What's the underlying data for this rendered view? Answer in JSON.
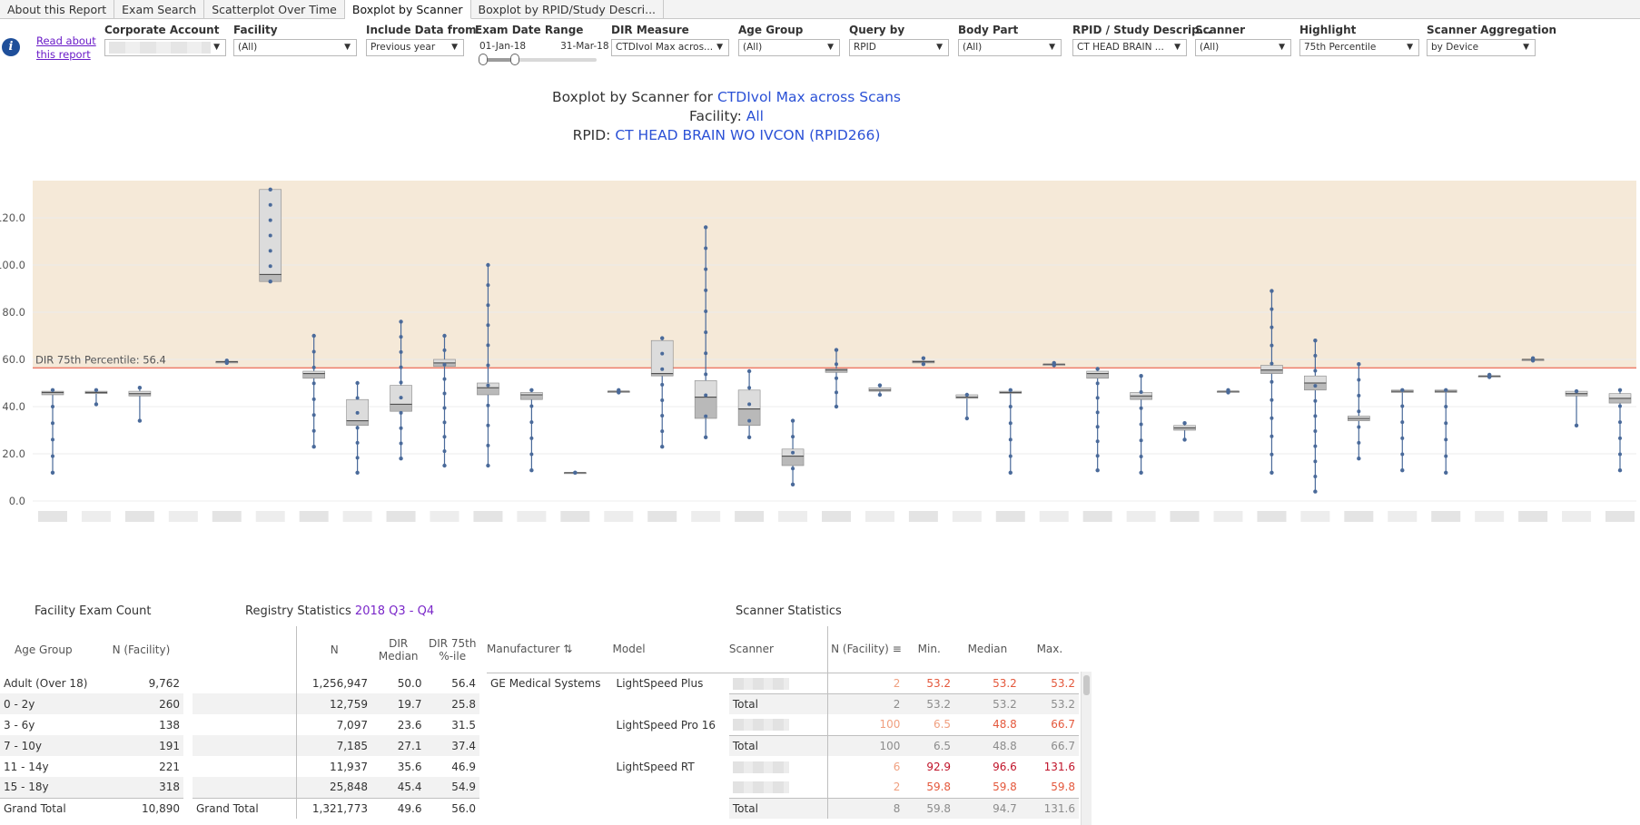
{
  "tabs": [
    "About this Report",
    "Exam Search",
    "Scatterplot Over Time",
    "Boxplot by Scanner",
    "Boxplot by RPID/Study Descri..."
  ],
  "active_tab": 3,
  "info": {
    "read_about": "Read about this report"
  },
  "filters": {
    "corporate_account": {
      "label": "Corporate Account",
      "value": ""
    },
    "facility": {
      "label": "Facility",
      "value": "(All)"
    },
    "include_data": {
      "label": "Include Data from",
      "value": "Previous year"
    },
    "exam_date": {
      "label": "Exam Date Range",
      "start": "01-Jan-18",
      "end": "31-Mar-18"
    },
    "dir_measure": {
      "label": "DIR Measure",
      "value": "CTDIvol Max acros..."
    },
    "age_group": {
      "label": "Age Group",
      "value": "(All)"
    },
    "query_by": {
      "label": "Query by",
      "value": "RPID"
    },
    "body_part": {
      "label": "Body Part",
      "value": "(All)"
    },
    "rpid": {
      "label": "RPID / Study Descrip...",
      "value": "CT HEAD BRAIN ..."
    },
    "scanner": {
      "label": "Scanner",
      "value": "(All)"
    },
    "highlight": {
      "label": "Highlight",
      "value": "75th Percentile"
    },
    "aggregation": {
      "label": "Scanner Aggregation",
      "value": "by Device"
    }
  },
  "title": {
    "prefix": "Boxplot by Scanner for ",
    "measure": "CTDIvol Max across Scans",
    "facility_prefix": "Facility: ",
    "facility": "All",
    "rpid_prefix": "RPID: ",
    "rpid": "CT HEAD BRAIN WO IVCON (RPID266)"
  },
  "colors": {
    "band": "#f5e9d8",
    "refline": "#ee7d6a",
    "dot": "#4a6a9a",
    "box_light": "#dcdcdc",
    "box_dark": "#b9b9b9",
    "link_blue": "#2b51d6",
    "purple": "#7a27c9"
  },
  "chart_data": {
    "type": "boxplot",
    "y_ticks": [
      "120.0",
      "100.0",
      "80.0",
      "60.0",
      "40.0",
      "20.0",
      "0.0"
    ],
    "ylim": [
      0,
      140
    ],
    "ref_line": {
      "label": "DIR 75th Percentile: 56.4",
      "value": 56.4
    },
    "boxes": [
      {
        "min": 12,
        "q1": 45,
        "med": 46,
        "q3": 46.5,
        "max": 47
      },
      {
        "min": 41,
        "q1": 45.5,
        "med": 46,
        "q3": 46.5,
        "max": 47
      },
      {
        "min": 34,
        "q1": 44.5,
        "med": 45.5,
        "q3": 46.5,
        "max": 48
      },
      null,
      {
        "min": 58.5,
        "q1": 58.5,
        "med": 59,
        "q3": 59.2,
        "max": 59.5
      },
      {
        "min": 93,
        "q1": 93,
        "med": 96,
        "q3": 132,
        "max": 132
      },
      {
        "min": 23,
        "q1": 52,
        "med": 54,
        "q3": 55,
        "max": 70
      },
      {
        "min": 12,
        "q1": 32,
        "med": 34,
        "q3": 43,
        "max": 50
      },
      {
        "min": 18,
        "q1": 38,
        "med": 41,
        "q3": 49,
        "max": 76
      },
      {
        "min": 15,
        "q1": 57,
        "med": 58.5,
        "q3": 60,
        "max": 70
      },
      {
        "min": 15,
        "q1": 45,
        "med": 48,
        "q3": 50,
        "max": 100
      },
      {
        "min": 13,
        "q1": 43,
        "med": 45,
        "q3": 46,
        "max": 47
      },
      {
        "min": 12,
        "q1": 12,
        "med": 12,
        "q3": 12,
        "max": 12
      },
      {
        "min": 46,
        "q1": 46,
        "med": 46.5,
        "q3": 46.5,
        "max": 47
      },
      {
        "min": 23,
        "q1": 53,
        "med": 54,
        "q3": 68,
        "max": 69
      },
      {
        "min": 27,
        "q1": 35,
        "med": 44,
        "q3": 51,
        "max": 116
      },
      {
        "min": 27,
        "q1": 32,
        "med": 39,
        "q3": 47,
        "max": 55
      },
      {
        "min": 7,
        "q1": 15,
        "med": 19,
        "q3": 22,
        "max": 34
      },
      {
        "min": 40,
        "q1": 54.5,
        "med": 55.5,
        "q3": 56,
        "max": 64
      },
      {
        "min": 45,
        "q1": 46.5,
        "med": 47,
        "q3": 48,
        "max": 49
      },
      {
        "min": 58,
        "q1": 58.5,
        "med": 59,
        "q3": 59.5,
        "max": 60.5
      },
      {
        "min": 35,
        "q1": 43.5,
        "med": 44,
        "q3": 45,
        "max": 45
      },
      {
        "min": 12,
        "q1": 46,
        "med": 46,
        "q3": 46.5,
        "max": 47
      },
      {
        "min": 57.5,
        "q1": 57.5,
        "med": 58,
        "q3": 58,
        "max": 58.5
      },
      {
        "min": 13,
        "q1": 52,
        "med": 54,
        "q3": 55,
        "max": 56
      },
      {
        "min": 12,
        "q1": 43,
        "med": 44.5,
        "q3": 46,
        "max": 53
      },
      {
        "min": 26,
        "q1": 30,
        "med": 31,
        "q3": 32,
        "max": 33
      },
      {
        "min": 46,
        "q1": 46,
        "med": 46.5,
        "q3": 46.5,
        "max": 47
      },
      {
        "min": 12,
        "q1": 54,
        "med": 55.5,
        "q3": 57.5,
        "max": 89
      },
      {
        "min": 4,
        "q1": 47,
        "med": 50,
        "q3": 53,
        "max": 68
      },
      {
        "min": 18,
        "q1": 34,
        "med": 35,
        "q3": 36,
        "max": 58
      },
      {
        "min": 13,
        "q1": 46,
        "med": 46.5,
        "q3": 47,
        "max": 47
      },
      {
        "min": 12,
        "q1": 46,
        "med": 46.5,
        "q3": 47,
        "max": 47
      },
      {
        "min": 52.5,
        "q1": 52.5,
        "med": 53,
        "q3": 53,
        "max": 53.5
      },
      {
        "min": 59.5,
        "q1": 59.5,
        "med": 60,
        "q3": 60,
        "max": 60.5
      },
      {
        "min": 32,
        "q1": 44.5,
        "med": 45.5,
        "q3": 46.5,
        "max": 46.5
      },
      {
        "min": 13,
        "q1": 41.5,
        "med": 43.5,
        "q3": 45.5,
        "max": 47
      }
    ]
  },
  "facility_exam_count": {
    "title": "Facility Exam Count",
    "headers": [
      "Age Group",
      "N (Facility)"
    ],
    "rows": [
      [
        "Adult (Over 18)",
        "9,762"
      ],
      [
        "0 - 2y",
        "260"
      ],
      [
        "3 - 6y",
        "138"
      ],
      [
        "7 - 10y",
        "191"
      ],
      [
        "11 - 14y",
        "221"
      ],
      [
        "15 - 18y",
        "318"
      ],
      [
        "Grand Total",
        "10,890"
      ]
    ]
  },
  "registry_stats": {
    "title_prefix": "Registry Statistics ",
    "period": "2018 Q3 - Q4",
    "headers": [
      "N",
      "DIR Median",
      "DIR 75th %-ile"
    ],
    "rows": [
      [
        "",
        "1,256,947",
        "50.0",
        "56.4"
      ],
      [
        "",
        "12,759",
        "19.7",
        "25.8"
      ],
      [
        "",
        "7,097",
        "23.6",
        "31.5"
      ],
      [
        "",
        "7,185",
        "27.1",
        "37.4"
      ],
      [
        "",
        "11,937",
        "35.6",
        "46.9"
      ],
      [
        "",
        "25,848",
        "45.4",
        "54.9"
      ],
      [
        "Grand Total",
        "1,321,773",
        "49.6",
        "56.0"
      ]
    ]
  },
  "scanner_stats": {
    "title": "Scanner Statistics",
    "headers": [
      "Manufacturer",
      "Model",
      "Scanner",
      "N (Facility)",
      "Min.",
      "Median",
      "Max."
    ],
    "rows": [
      {
        "manufacturer": "GE Medical Systems",
        "model": "LightSpeed Plus",
        "scanner": "",
        "n": "2",
        "min": "53.2",
        "median": "53.2",
        "max": "53.2",
        "tone": [
          "c-light",
          "c-mid",
          "c-mid",
          "c-mid"
        ]
      },
      {
        "manufacturer": "",
        "model": "",
        "scanner": "Total",
        "n": "2",
        "min": "53.2",
        "median": "53.2",
        "max": "53.2",
        "tone": [
          "gray",
          "gray",
          "gray",
          "gray"
        ]
      },
      {
        "manufacturer": "",
        "model": "LightSpeed Pro 16",
        "scanner": "",
        "n": "100",
        "min": "6.5",
        "median": "48.8",
        "max": "66.7",
        "tone": [
          "c-light",
          "c-light",
          "c-mid",
          "c-mid"
        ]
      },
      {
        "manufacturer": "",
        "model": "",
        "scanner": "Total",
        "n": "100",
        "min": "6.5",
        "median": "48.8",
        "max": "66.7",
        "tone": [
          "gray",
          "gray",
          "gray",
          "gray"
        ]
      },
      {
        "manufacturer": "",
        "model": "LightSpeed RT",
        "scanner": "",
        "n": "6",
        "min": "92.9",
        "median": "96.6",
        "max": "131.6",
        "tone": [
          "c-light",
          "c-dark",
          "c-dark",
          "c-dark"
        ]
      },
      {
        "manufacturer": "",
        "model": "",
        "scanner": "",
        "n": "2",
        "min": "59.8",
        "median": "59.8",
        "max": "59.8",
        "tone": [
          "c-light",
          "c-mid",
          "c-mid",
          "c-mid"
        ]
      },
      {
        "manufacturer": "",
        "model": "",
        "scanner": "Total",
        "n": "8",
        "min": "59.8",
        "median": "94.7",
        "max": "131.6",
        "tone": [
          "gray",
          "gray",
          "gray",
          "gray"
        ]
      }
    ]
  }
}
